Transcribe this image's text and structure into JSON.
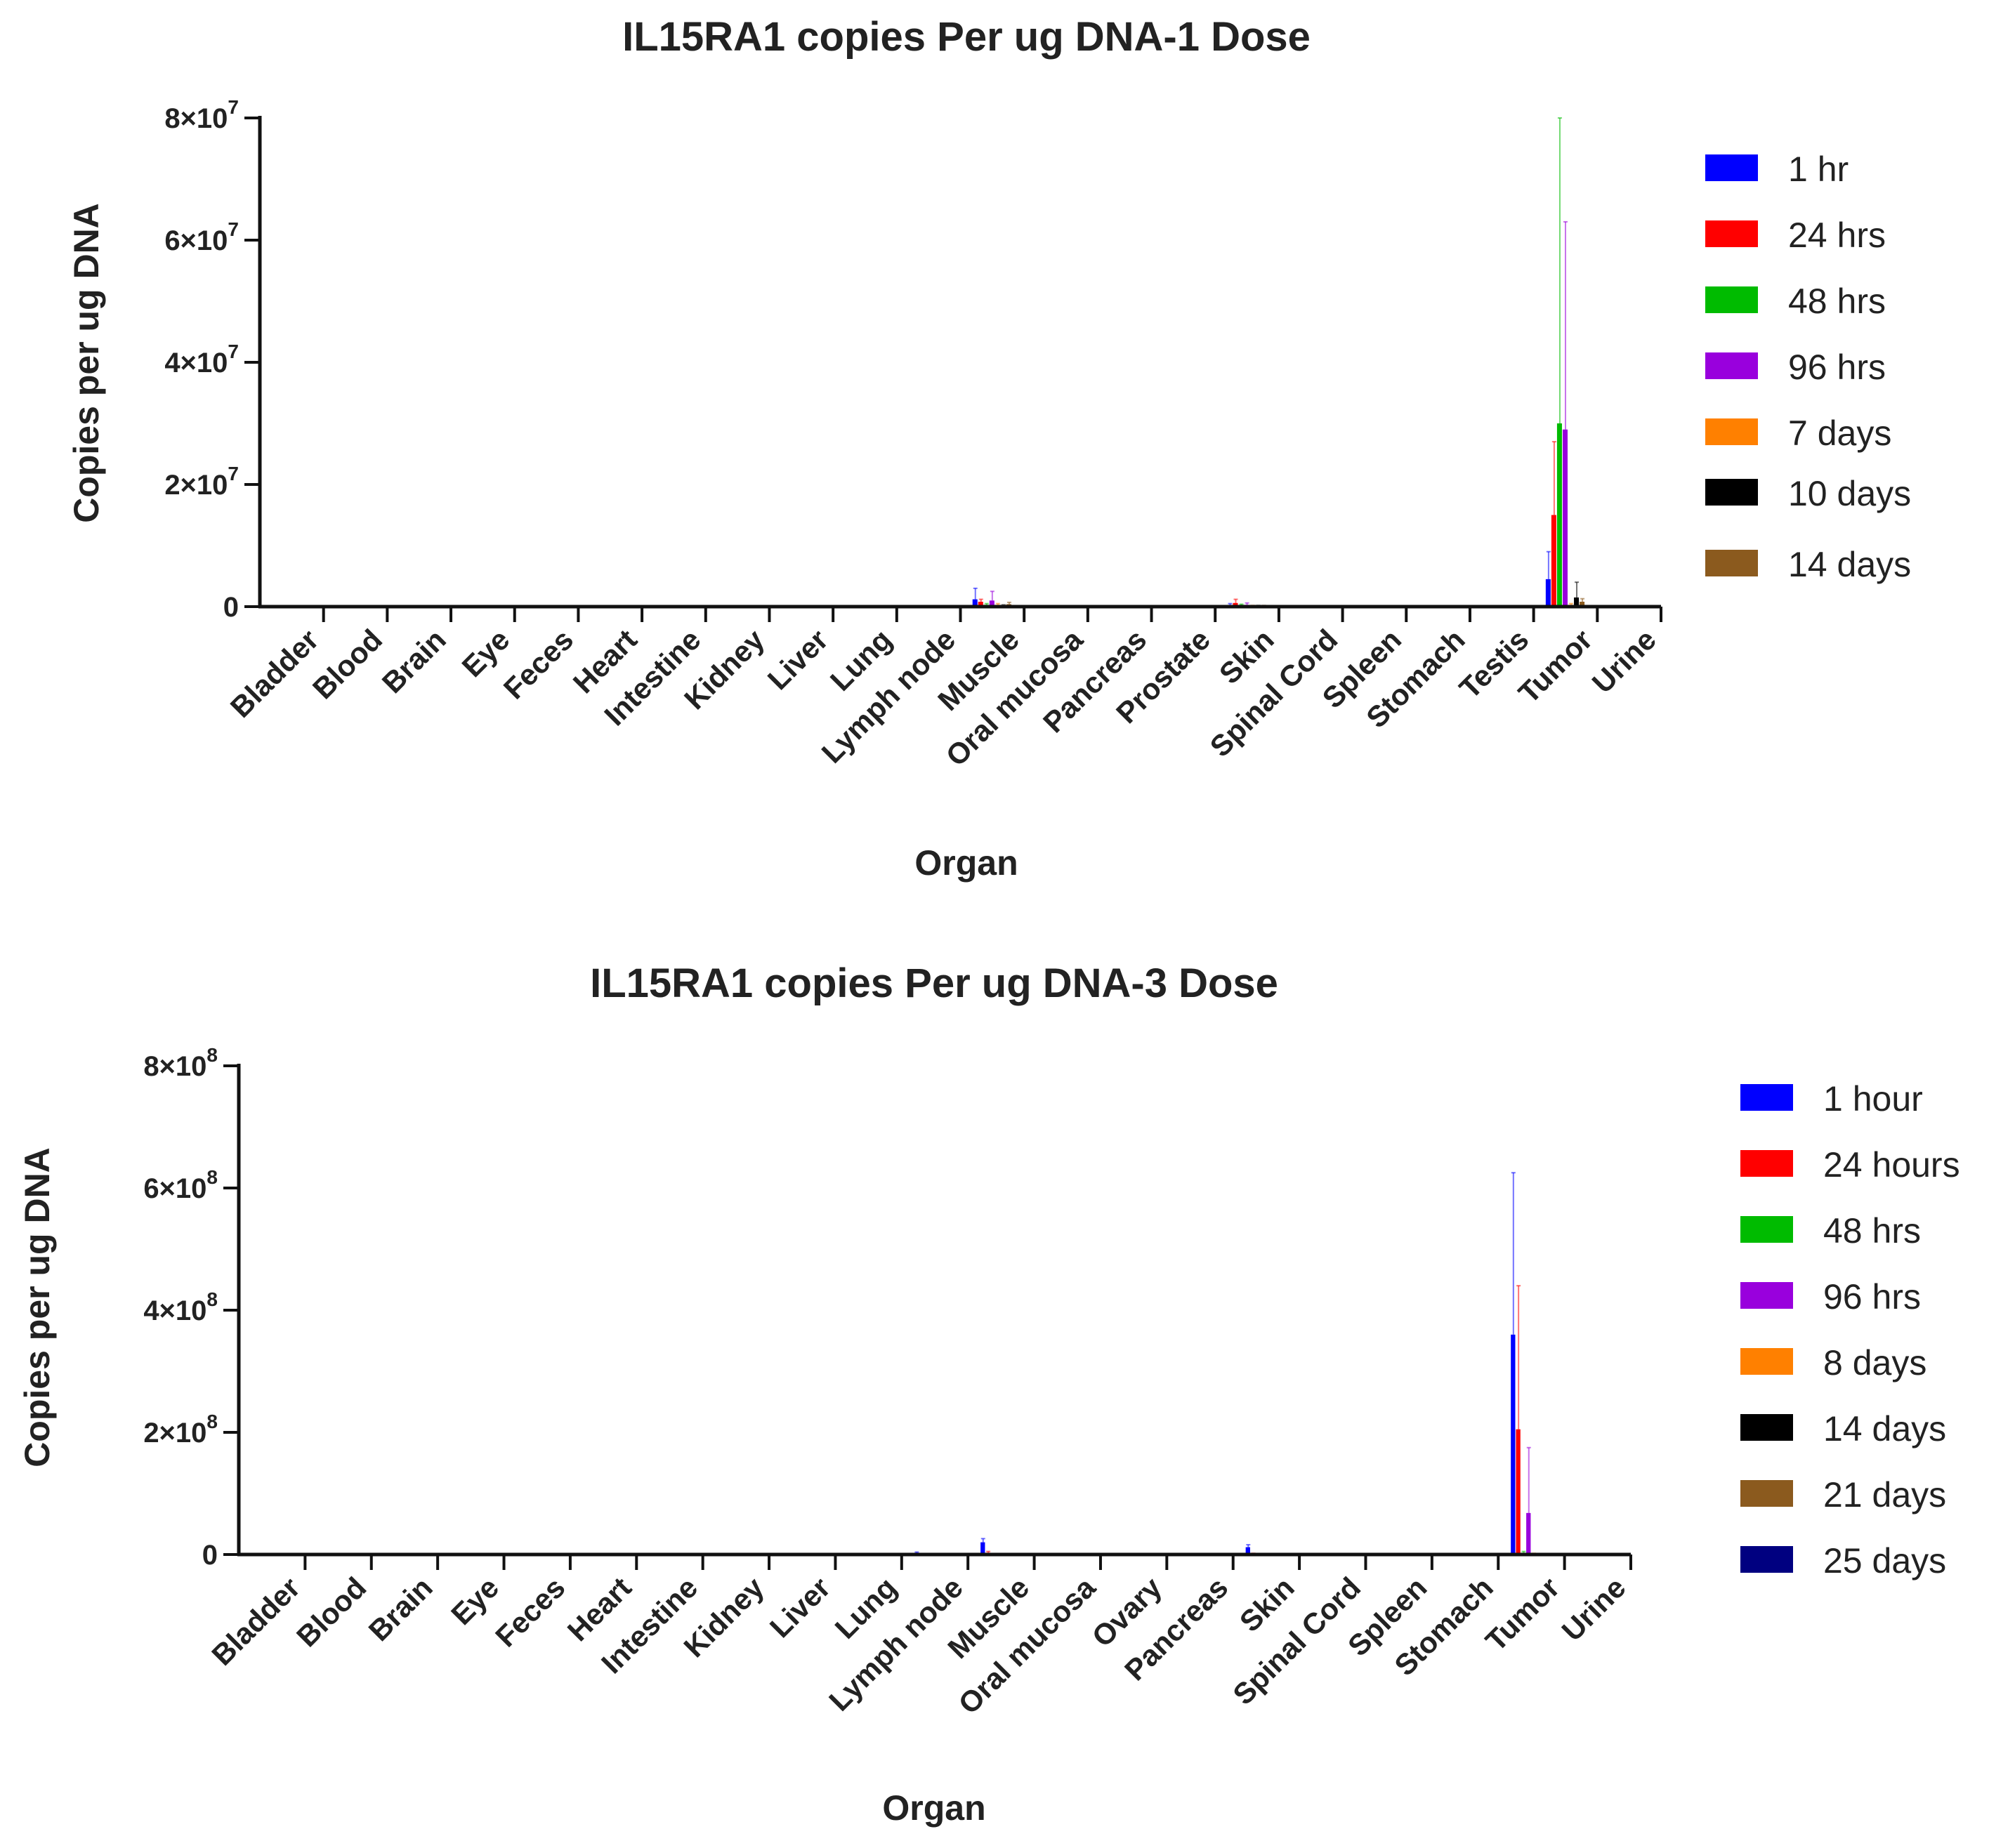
{
  "chart_data": [
    {
      "type": "bar",
      "title": "IL15RA1 copies Per ug DNA-1 Dose",
      "xlabel": "Organ",
      "ylabel": "Copies per ug DNA",
      "ylim": [
        0,
        80000000
      ],
      "yticks": [
        {
          "value": 0,
          "mant": "0",
          "exp": ""
        },
        {
          "value": 20000000,
          "mant": "2×10",
          "exp": "7"
        },
        {
          "value": 40000000,
          "mant": "4×10",
          "exp": "7"
        },
        {
          "value": 60000000,
          "mant": "6×10",
          "exp": "7"
        },
        {
          "value": 80000000,
          "mant": "8×10",
          "exp": "7"
        }
      ],
      "categories": [
        "Bladder",
        "Blood",
        "Brain",
        "Eye",
        "Feces",
        "Heart",
        "Intestine",
        "Kidney",
        "Liver",
        "Lung",
        "Lymph node",
        "Muscle",
        "Oral mucosa",
        "Pancreas",
        "Prostate",
        "Skin",
        "Spinal Cord",
        "Spleen",
        "Stomach",
        "Testis",
        "Tumor",
        "Urine"
      ],
      "series": [
        {
          "name": "1 hr",
          "color": "#0000ff",
          "values": [
            0,
            0,
            0,
            0,
            0,
            0,
            0,
            0,
            0,
            0,
            0,
            1200000,
            0,
            0,
            0,
            200000,
            0,
            0,
            0,
            0,
            4500000,
            0
          ],
          "errors": [
            0,
            0,
            0,
            0,
            0,
            0,
            0,
            0,
            0,
            0,
            0,
            1800000,
            0,
            0,
            0,
            300000,
            0,
            0,
            0,
            0,
            4500000,
            0
          ]
        },
        {
          "name": "24 hrs",
          "color": "#ff0000",
          "values": [
            0,
            0,
            0,
            0,
            0,
            0,
            0,
            0,
            0,
            0,
            0,
            800000,
            0,
            0,
            0,
            600000,
            0,
            0,
            0,
            0,
            15000000,
            0
          ],
          "errors": [
            0,
            0,
            0,
            0,
            0,
            0,
            0,
            0,
            0,
            0,
            0,
            400000,
            0,
            0,
            0,
            600000,
            0,
            0,
            0,
            0,
            12000000,
            0
          ]
        },
        {
          "name": "48 hrs",
          "color": "#00bb00",
          "values": [
            0,
            0,
            0,
            0,
            0,
            0,
            0,
            0,
            0,
            0,
            0,
            300000,
            0,
            0,
            0,
            200000,
            0,
            0,
            0,
            0,
            30000000,
            0
          ],
          "errors": [
            0,
            0,
            0,
            0,
            0,
            0,
            0,
            0,
            0,
            0,
            0,
            200000,
            0,
            0,
            0,
            200000,
            0,
            0,
            0,
            0,
            50000000,
            0
          ]
        },
        {
          "name": "96 hrs",
          "color": "#9900dd",
          "values": [
            0,
            0,
            0,
            0,
            0,
            0,
            0,
            0,
            0,
            0,
            0,
            1000000,
            0,
            0,
            0,
            300000,
            0,
            0,
            0,
            0,
            29000000,
            0
          ],
          "errors": [
            0,
            0,
            0,
            0,
            0,
            0,
            0,
            0,
            0,
            0,
            0,
            1500000,
            0,
            0,
            0,
            300000,
            0,
            0,
            0,
            0,
            34000000,
            0
          ]
        },
        {
          "name": "7 days",
          "color": "#ff8000",
          "values": [
            0,
            0,
            0,
            0,
            0,
            0,
            0,
            0,
            0,
            0,
            0,
            300000,
            0,
            0,
            0,
            100000,
            0,
            0,
            0,
            0,
            300000,
            0
          ],
          "errors": [
            0,
            0,
            0,
            0,
            0,
            0,
            0,
            0,
            0,
            0,
            0,
            200000,
            0,
            0,
            0,
            100000,
            0,
            0,
            0,
            0,
            200000,
            0
          ]
        },
        {
          "name": "10 days",
          "color": "#000000",
          "values": [
            0,
            0,
            0,
            0,
            0,
            0,
            0,
            0,
            0,
            0,
            0,
            200000,
            0,
            0,
            0,
            100000,
            0,
            0,
            0,
            0,
            1500000,
            0
          ],
          "errors": [
            0,
            0,
            0,
            0,
            0,
            0,
            0,
            0,
            0,
            0,
            0,
            100000,
            0,
            0,
            0,
            100000,
            0,
            0,
            0,
            0,
            2500000,
            0
          ]
        },
        {
          "name": "14 days",
          "color": "#8b5a1e",
          "values": [
            0,
            0,
            0,
            0,
            0,
            0,
            0,
            0,
            0,
            0,
            0,
            400000,
            0,
            0,
            0,
            100000,
            0,
            0,
            0,
            0,
            800000,
            0
          ],
          "errors": [
            0,
            0,
            0,
            0,
            0,
            0,
            0,
            0,
            0,
            0,
            0,
            300000,
            0,
            0,
            0,
            100000,
            0,
            0,
            0,
            0,
            500000,
            0
          ]
        }
      ]
    },
    {
      "type": "bar",
      "title": "IL15RA1 copies Per ug DNA-3 Dose",
      "xlabel": "Organ",
      "ylabel": "Copies per ug DNA",
      "ylim": [
        0,
        800000000
      ],
      "yticks": [
        {
          "value": 0,
          "mant": "0",
          "exp": ""
        },
        {
          "value": 200000000,
          "mant": "2×10",
          "exp": "8"
        },
        {
          "value": 400000000,
          "mant": "4×10",
          "exp": "8"
        },
        {
          "value": 600000000,
          "mant": "6×10",
          "exp": "8"
        },
        {
          "value": 800000000,
          "mant": "8×10",
          "exp": "8"
        }
      ],
      "categories": [
        "Bladder",
        "Blood",
        "Brain",
        "Eye",
        "Feces",
        "Heart",
        "Intestine",
        "Kidney",
        "Liver",
        "Lung",
        "Lymph node",
        "Muscle",
        "Oral mucosa",
        "Ovary",
        "Pancreas",
        "Skin",
        "Spinal Cord",
        "Spleen",
        "Stomach",
        "Tumor",
        "Urine"
      ],
      "series": [
        {
          "name": "1 hour",
          "color": "#0000ff",
          "values": [
            0,
            0,
            0,
            0,
            0,
            0,
            0,
            0,
            0,
            0,
            2000000,
            20000000,
            0,
            0,
            0,
            12000000,
            0,
            0,
            0,
            360000000,
            0
          ],
          "errors": [
            0,
            0,
            0,
            0,
            0,
            0,
            0,
            0,
            0,
            0,
            2000000,
            6000000,
            0,
            0,
            0,
            4000000,
            0,
            0,
            0,
            265000000,
            0
          ]
        },
        {
          "name": "24 hours",
          "color": "#ff0000",
          "values": [
            0,
            0,
            0,
            0,
            0,
            0,
            0,
            0,
            0,
            0,
            0,
            3000000,
            0,
            0,
            0,
            1000000,
            0,
            0,
            0,
            205000000,
            0
          ],
          "errors": [
            0,
            0,
            0,
            0,
            0,
            0,
            0,
            0,
            0,
            0,
            0,
            2000000,
            0,
            0,
            0,
            1000000,
            0,
            0,
            0,
            235000000,
            0
          ]
        },
        {
          "name": "48 hrs",
          "color": "#00bb00",
          "values": [
            0,
            0,
            0,
            0,
            0,
            0,
            0,
            0,
            0,
            0,
            0,
            1000000,
            0,
            0,
            0,
            500000,
            0,
            0,
            0,
            3000000,
            0
          ],
          "errors": [
            0,
            0,
            0,
            0,
            0,
            0,
            0,
            0,
            0,
            0,
            0,
            500000,
            0,
            0,
            0,
            500000,
            0,
            0,
            0,
            2000000,
            0
          ]
        },
        {
          "name": "96 hrs",
          "color": "#9900dd",
          "values": [
            0,
            0,
            0,
            0,
            0,
            0,
            0,
            0,
            0,
            0,
            0,
            1000000,
            0,
            0,
            0,
            500000,
            0,
            0,
            0,
            68000000,
            0
          ],
          "errors": [
            0,
            0,
            0,
            0,
            0,
            0,
            0,
            0,
            0,
            0,
            0,
            500000,
            0,
            0,
            0,
            500000,
            0,
            0,
            0,
            107000000,
            0
          ]
        },
        {
          "name": "8 days",
          "color": "#ff8000",
          "values": [
            0,
            0,
            0,
            0,
            0,
            0,
            0,
            0,
            0,
            0,
            0,
            500000,
            0,
            0,
            0,
            300000,
            0,
            0,
            0,
            1000000,
            0
          ],
          "errors": [
            0,
            0,
            0,
            0,
            0,
            0,
            0,
            0,
            0,
            0,
            0,
            300000,
            0,
            0,
            0,
            300000,
            0,
            0,
            0,
            1000000,
            0
          ]
        },
        {
          "name": "14 days",
          "color": "#000000",
          "values": [
            0,
            0,
            0,
            0,
            0,
            0,
            0,
            0,
            0,
            0,
            0,
            300000,
            0,
            0,
            0,
            200000,
            0,
            0,
            0,
            500000,
            0
          ],
          "errors": [
            0,
            0,
            0,
            0,
            0,
            0,
            0,
            0,
            0,
            0,
            0,
            200000,
            0,
            0,
            0,
            200000,
            0,
            0,
            0,
            500000,
            0
          ]
        },
        {
          "name": "21 days",
          "color": "#8b5a1e",
          "values": [
            0,
            0,
            0,
            0,
            0,
            0,
            0,
            0,
            0,
            0,
            0,
            300000,
            0,
            0,
            0,
            200000,
            0,
            0,
            0,
            500000,
            0
          ],
          "errors": [
            0,
            0,
            0,
            0,
            0,
            0,
            0,
            0,
            0,
            0,
            0,
            200000,
            0,
            0,
            0,
            200000,
            0,
            0,
            0,
            500000,
            0
          ]
        },
        {
          "name": "25 days",
          "color": "#000080",
          "values": [
            0,
            0,
            0,
            0,
            0,
            0,
            0,
            0,
            0,
            0,
            0,
            300000,
            0,
            0,
            0,
            200000,
            0,
            0,
            0,
            500000,
            0
          ],
          "errors": [
            0,
            0,
            0,
            0,
            0,
            0,
            0,
            0,
            0,
            0,
            0,
            200000,
            0,
            0,
            0,
            200000,
            0,
            0,
            0,
            500000,
            0
          ]
        }
      ]
    }
  ]
}
